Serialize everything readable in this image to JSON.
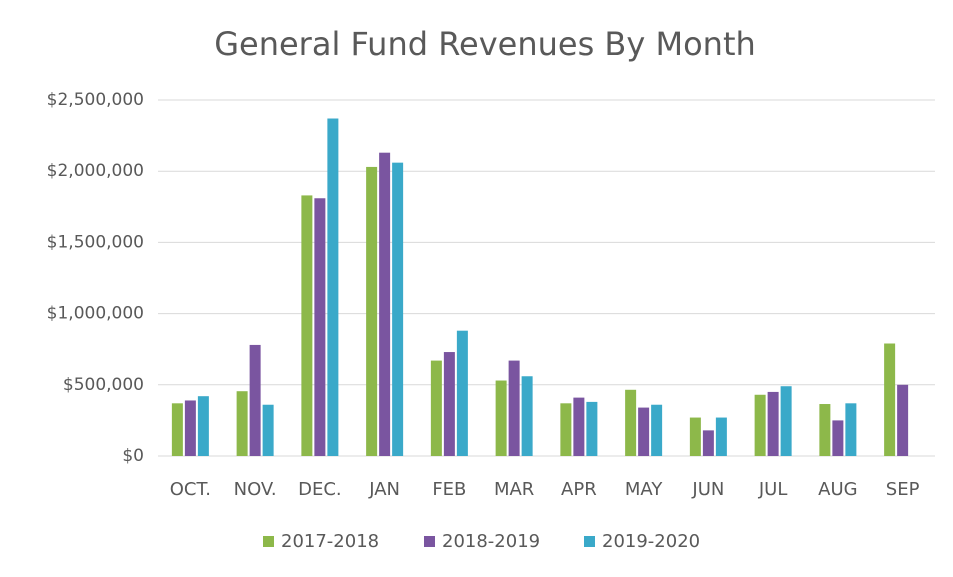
{
  "chart_data": {
    "type": "bar",
    "title": "General Fund Revenues By Month",
    "categories": [
      "OCT.",
      "NOV.",
      "DEC.",
      "JAN",
      "FEB",
      "MAR",
      "APR",
      "MAY",
      "JUN",
      "JUL",
      "AUG",
      "SEP"
    ],
    "series": [
      {
        "name": "2017-2018",
        "color": "#8db84a",
        "values": [
          370000,
          455000,
          1830000,
          2030000,
          670000,
          530000,
          370000,
          465000,
          270000,
          430000,
          365000,
          790000
        ]
      },
      {
        "name": "2018-2019",
        "color": "#7a55a0",
        "values": [
          390000,
          780000,
          1810000,
          2130000,
          730000,
          670000,
          410000,
          340000,
          180000,
          450000,
          250000,
          500000
        ]
      },
      {
        "name": "2019-2020",
        "color": "#3aa9c9",
        "values": [
          420000,
          360000,
          2370000,
          2060000,
          880000,
          560000,
          380000,
          360000,
          270000,
          490000,
          370000,
          null
        ]
      }
    ],
    "ylim": [
      0,
      2500000
    ],
    "yticks": [
      {
        "value": 0,
        "label": "$0"
      },
      {
        "value": 500000,
        "label": "$500,000"
      },
      {
        "value": 1000000,
        "label": "$1,000,000"
      },
      {
        "value": 1500000,
        "label": "$1,500,000"
      },
      {
        "value": 2000000,
        "label": "$2,000,000"
      },
      {
        "value": 2500000,
        "label": "$2,500,000"
      }
    ],
    "grid": true,
    "legend": "bottom"
  }
}
